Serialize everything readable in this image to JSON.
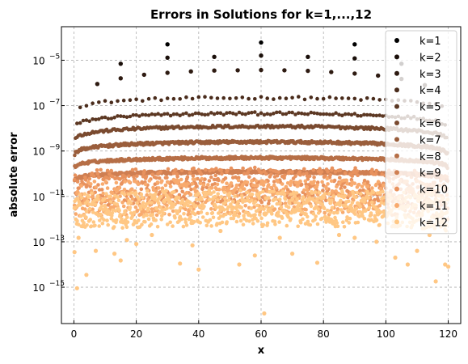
{
  "chart_data": {
    "type": "scatter",
    "title": "Errors in Solutions for k=1,...,12",
    "xlabel": "x",
    "ylabel": "absolute error",
    "y_scale": "log",
    "xlim": [
      -4,
      124
    ],
    "ylim": [
      2.5e-17,
      0.0003
    ],
    "x_ticks": [
      0,
      20,
      40,
      60,
      80,
      100,
      120
    ],
    "y_ticks": [
      {
        "value": 1e-05,
        "base": "10",
        "exp": "−5"
      },
      {
        "value": 1e-07,
        "base": "10",
        "exp": "−7"
      },
      {
        "value": 1e-09,
        "base": "10",
        "exp": "−9"
      },
      {
        "value": 1e-11,
        "base": "10",
        "exp": "−11"
      },
      {
        "value": 1e-13,
        "base": "10",
        "exp": "−13"
      },
      {
        "value": 1e-15,
        "base": "10",
        "exp": "−15"
      }
    ],
    "grid": true,
    "legend_position": "top-right",
    "series": [
      {
        "name": "k=1",
        "color": "#000000",
        "points": [
          [
            30,
            5e-05
          ],
          [
            60,
            6e-05
          ],
          [
            90,
            5e-05
          ]
        ]
      },
      {
        "name": "k=2",
        "color": "#1a0f0a",
        "points": [
          [
            15,
            7e-06
          ],
          [
            30,
            1.3e-05
          ],
          [
            45,
            1.4e-05
          ],
          [
            60,
            1.6e-05
          ],
          [
            75,
            1.4e-05
          ],
          [
            90,
            1.2e-05
          ],
          [
            105,
            7e-06
          ]
        ]
      },
      {
        "name": "k=3",
        "color": "#2e1b12",
        "points": [
          [
            7.5,
            9e-07
          ],
          [
            15,
            1.6e-06
          ],
          [
            22.5,
            2.3e-06
          ],
          [
            30,
            2.8e-06
          ],
          [
            37.5,
            3.2e-06
          ],
          [
            45,
            3.5e-06
          ],
          [
            52.5,
            3.6e-06
          ],
          [
            60,
            3.7e-06
          ],
          [
            67.5,
            3.6e-06
          ],
          [
            75,
            3.4e-06
          ],
          [
            82.5,
            3e-06
          ],
          [
            90,
            2.6e-06
          ],
          [
            97.5,
            2.1e-06
          ],
          [
            105,
            1.5e-06
          ],
          [
            112.5,
            8e-07
          ]
        ]
      },
      {
        "name": "k=4",
        "color": "#4a2c1c"
      },
      {
        "name": "k=5",
        "color": "#5c3823"
      },
      {
        "name": "k=6",
        "color": "#7a4a2f"
      },
      {
        "name": "k=7",
        "color": "#9a5e3c"
      },
      {
        "name": "k=8",
        "color": "#b66f47"
      },
      {
        "name": "k=9",
        "color": "#cf7f52"
      },
      {
        "name": "k=10",
        "color": "#e8925e"
      },
      {
        "name": "k=11",
        "color": "#f8aa6e"
      },
      {
        "name": "k=12",
        "color": "#ffc784"
      }
    ],
    "band_levels": {
      "k=4": {
        "center": 2.2e-07,
        "edge": 2.5e-08,
        "x_step": 2.0
      },
      "k=5": {
        "center": 4.5e-08,
        "edge": 4e-09,
        "x_step": 1.0
      },
      "k=6": {
        "center": 1.2e-08,
        "edge": 1.2e-09,
        "x_step": 0.5
      },
      "k=7": {
        "center": 2.5e-09,
        "edge": 3e-10,
        "x_step": 0.25
      },
      "k=8": {
        "center": 5e-10,
        "edge": 1e-10,
        "x_step": 0.25
      },
      "k=9": {
        "center": 1.2e-10,
        "edge": 3e-11,
        "x_step": 0.2
      },
      "k=10": {
        "center": 3e-11,
        "edge": 1e-11,
        "x_step": 0.2
      },
      "k=11": {
        "center": 1e-11,
        "edge": 3e-12,
        "x_step": 0.2
      },
      "k=12": {
        "center": 3e-12,
        "edge": 1e-12,
        "x_step": 0.15
      }
    },
    "outliers": [
      [
        0.2,
        3.5e-14
      ],
      [
        1.0,
        9e-16
      ],
      [
        1.5,
        1.5e-13
      ],
      [
        4.0,
        3.5e-15
      ],
      [
        7.0,
        4e-14
      ],
      [
        13.0,
        3e-14
      ],
      [
        15.0,
        1.5e-14
      ],
      [
        17.0,
        1.2e-13
      ],
      [
        20.0,
        8e-14
      ],
      [
        25.0,
        2e-13
      ],
      [
        34.0,
        1.1e-14
      ],
      [
        38.0,
        7e-14
      ],
      [
        40.0,
        6e-15
      ],
      [
        47.0,
        3e-13
      ],
      [
        53.0,
        1e-14
      ],
      [
        58.0,
        2.5e-14
      ],
      [
        61.0,
        7e-17
      ],
      [
        66.0,
        1.5e-13
      ],
      [
        70.0,
        3e-14
      ],
      [
        78.0,
        1.2e-14
      ],
      [
        85.0,
        2e-13
      ],
      [
        90.0,
        1.5e-13
      ],
      [
        97.0,
        1e-13
      ],
      [
        103.0,
        2e-14
      ],
      [
        107.0,
        1e-14
      ],
      [
        110.0,
        4e-14
      ],
      [
        114.0,
        2e-13
      ],
      [
        116.0,
        1.8e-15
      ],
      [
        119.0,
        1e-14
      ],
      [
        120.0,
        8e-15
      ]
    ]
  }
}
